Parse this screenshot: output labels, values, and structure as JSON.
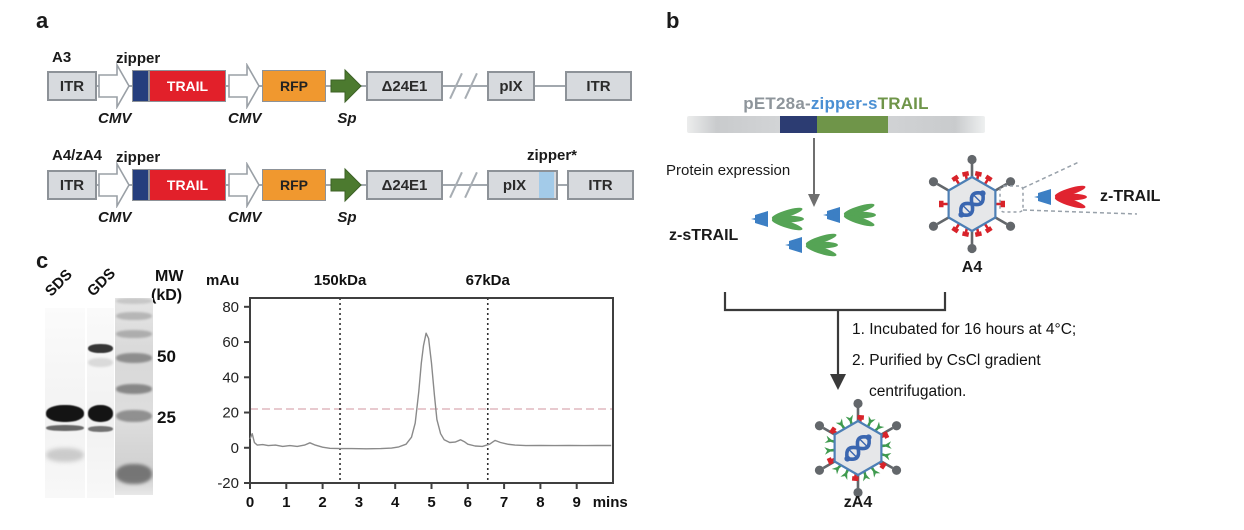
{
  "figure": {
    "panel_a_label": "a",
    "panel_b_label": "b",
    "panel_c_label": "c"
  },
  "panel_a": {
    "colors": {
      "zipper": "#253e7d",
      "trail": "#e2202a",
      "rfp": "#f0982f",
      "sp_arrow": "#4c7a2f",
      "zipper_star": "#a3cbe9",
      "box_fill": "#d7dade",
      "box_border": "#8d9298"
    },
    "row1": {
      "name": "A3",
      "itr_left": "ITR",
      "cmv1": "CMV",
      "zipper_label": "zipper",
      "trail": "TRAIL",
      "cmv2": "CMV",
      "rfp": "RFP",
      "sp": "Sp",
      "e1_region": "Δ24E1",
      "pix": "pIX",
      "itr_right": "ITR"
    },
    "row2": {
      "name": "A4/zA4",
      "itr_left": "ITR",
      "cmv1": "CMV",
      "zipper_label": "zipper",
      "trail": "TRAIL",
      "cmv2": "CMV",
      "rfp": "RFP",
      "sp": "Sp",
      "e1_region": "Δ24E1",
      "pix": "pIX",
      "zipper_star_label": "zipper*",
      "itr_right": "ITR"
    }
  },
  "panel_b": {
    "plasmid": {
      "vector": "pET28a",
      "dash1": "-",
      "zipper": "zipper",
      "dash2": "-",
      "s": "s",
      "trail": "TRAIL",
      "colors": {
        "vector": "#8e959b",
        "zipper": "#4a8fd3",
        "s": "#4a8fd3",
        "trail": "#6f9549",
        "bar_navy": "#2c3c72",
        "bar_green": "#6f9549"
      }
    },
    "protein_expression": "Protein expression",
    "z_strail_label": "z-sTRAIL",
    "a4_label": "A4",
    "z_trail_label": "z-TRAIL",
    "step1": "1. Incubated for 16 hours at 4°C;",
    "step2": "2. Purified by CsCl gradient",
    "step3": "centrifugation.",
    "za4_label": "zA4",
    "virus_colors": {
      "fiber": "#63676b",
      "capsid_border": "#4d7fb5",
      "capsid_fill": "#e6e7e9",
      "dna": "#3a66b0",
      "spike_red": "#d8232a",
      "spike_green": "#3f9a4e",
      "trimer_blue": "#3c7fc4",
      "trimer_green": "#55a455",
      "trail_red": "#e02430"
    }
  },
  "panel_c": {
    "gel": {
      "lane1": "SDS",
      "lane2": "GDS",
      "mw_label": "MW",
      "mw_unit": "(kD)",
      "marker_50": "50",
      "marker_25": "25"
    }
  },
  "chart_data": {
    "type": "line",
    "title": "",
    "xlabel": "mins",
    "ylabel": "mAu",
    "xlim": [
      0,
      10
    ],
    "ylim": [
      -20,
      85
    ],
    "x_ticks": [
      0,
      1,
      2,
      3,
      4,
      5,
      6,
      7,
      8,
      9
    ],
    "y_ticks": [
      80,
      60,
      40,
      20,
      0,
      -20
    ],
    "grid": false,
    "legend": "none",
    "annotations": [
      {
        "label": "150kDa",
        "x": 2.48
      },
      {
        "label": "67kDa",
        "x": 6.55
      }
    ],
    "threshold_line": {
      "y": 22,
      "color": "#d9aab2"
    },
    "peak": {
      "x": 4.85,
      "y": 65
    },
    "series": [
      {
        "name": "absorbance",
        "color": "#8a8a8a",
        "points": [
          [
            0,
            5
          ],
          [
            0.06,
            8
          ],
          [
            0.12,
            3
          ],
          [
            0.2,
            1.5
          ],
          [
            0.35,
            1.8
          ],
          [
            0.5,
            1.2
          ],
          [
            0.7,
            1.5
          ],
          [
            0.9,
            0.8
          ],
          [
            1.1,
            1.2
          ],
          [
            1.3,
            0.8
          ],
          [
            1.5,
            1.5
          ],
          [
            1.65,
            2.8
          ],
          [
            1.8,
            1.5
          ],
          [
            2.0,
            0.3
          ],
          [
            2.2,
            -0.3
          ],
          [
            2.5,
            -0.5
          ],
          [
            2.8,
            -0.5
          ],
          [
            3.2,
            -0.6
          ],
          [
            3.6,
            -0.5
          ],
          [
            3.9,
            -0.2
          ],
          [
            4.1,
            0.5
          ],
          [
            4.3,
            2
          ],
          [
            4.45,
            6
          ],
          [
            4.55,
            14
          ],
          [
            4.65,
            32
          ],
          [
            4.72,
            48
          ],
          [
            4.78,
            58
          ],
          [
            4.85,
            65
          ],
          [
            4.92,
            62
          ],
          [
            5.0,
            48
          ],
          [
            5.08,
            30
          ],
          [
            5.15,
            16
          ],
          [
            5.25,
            8
          ],
          [
            5.35,
            4.5
          ],
          [
            5.5,
            3
          ],
          [
            5.65,
            3.2
          ],
          [
            5.8,
            4.5
          ],
          [
            5.9,
            3.5
          ],
          [
            6.0,
            2
          ],
          [
            6.2,
            1
          ],
          [
            6.4,
            0.8
          ],
          [
            6.6,
            2
          ],
          [
            6.75,
            4.2
          ],
          [
            6.9,
            3
          ],
          [
            7.1,
            2
          ],
          [
            7.3,
            1.5
          ],
          [
            7.6,
            1.2
          ],
          [
            8.0,
            1.3
          ],
          [
            8.4,
            1.2
          ],
          [
            8.8,
            1.3
          ],
          [
            9.2,
            1.2
          ],
          [
            9.6,
            1.3
          ],
          [
            9.95,
            1.3
          ]
        ]
      }
    ]
  }
}
